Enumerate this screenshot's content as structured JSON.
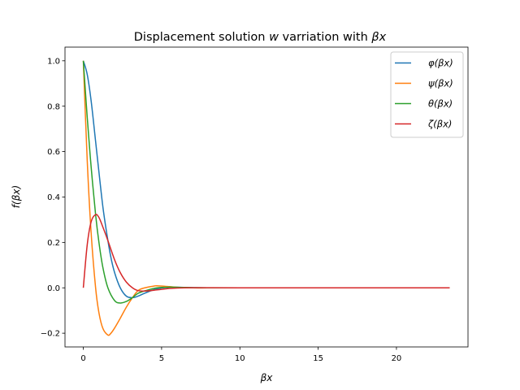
{
  "chart_data": {
    "type": "line",
    "title": {
      "prefix": "Displacement solution ",
      "symbol": "w",
      "middle": " varriation with ",
      "suffix": "βx"
    },
    "xlabel": "βx",
    "ylabel": "f(βx)",
    "xlim": [
      -1.17,
      24.57
    ],
    "ylim": [
      -0.2604,
      1.0602
    ],
    "xticks": [
      0,
      5,
      10,
      15,
      20
    ],
    "yticks": [
      -0.2,
      0.0,
      0.2,
      0.4,
      0.6,
      0.8,
      1.0
    ],
    "xtick_labels": [
      "0",
      "5",
      "10",
      "15",
      "20"
    ],
    "ytick_labels": [
      "−0.2",
      "0.0",
      "0.2",
      "0.4",
      "0.6",
      "0.8",
      "1.0"
    ],
    "grid": false,
    "legend_position": "upper right",
    "x_range": [
      0,
      23.4
    ],
    "series": [
      {
        "name": "φ(βx)",
        "color": "#1f77b4",
        "x": [
          0,
          0.25,
          0.5,
          0.785,
          1.0,
          1.25,
          1.5,
          1.75,
          2.0,
          2.36,
          2.75,
          3.14,
          3.5,
          3.93,
          4.5,
          5.0,
          5.5,
          6.0,
          7.0,
          8.0,
          10.0,
          15.0,
          20.0,
          23.4
        ],
        "y": [
          1.0,
          0.9398,
          0.8231,
          0.6448,
          0.5083,
          0.3563,
          0.2384,
          0.138,
          0.0667,
          0.0,
          -0.0368,
          -0.0432,
          -0.0366,
          -0.0234,
          -0.0086,
          -0.0006,
          0.0028,
          0.0025,
          0.0007,
          0.0,
          0.0,
          0.0,
          0.0,
          0.0
        ]
      },
      {
        "name": "ψ(βx)",
        "color": "#ff7f0e",
        "x": [
          0,
          0.25,
          0.5,
          0.785,
          1.0,
          1.25,
          1.57,
          1.75,
          2.0,
          2.36,
          2.75,
          3.14,
          3.5,
          3.93,
          4.5,
          4.71,
          5.5,
          6.0,
          7.0,
          8.0,
          10.0,
          15.0,
          20.0,
          23.4
        ],
        "y": [
          1.0,
          0.5607,
          0.2415,
          0.0,
          -0.1108,
          -0.1788,
          -0.2079,
          -0.2011,
          -0.177,
          -0.1341,
          -0.0849,
          -0.0432,
          -0.0119,
          0.0,
          0.0075,
          0.009,
          0.0052,
          0.0023,
          -0.0002,
          -0.0002,
          0.0,
          0.0,
          0.0,
          0.0
        ]
      },
      {
        "name": "θ(βx)",
        "color": "#2ca02c",
        "x": [
          0,
          0.25,
          0.5,
          0.785,
          1.0,
          1.25,
          1.57,
          2.0,
          2.36,
          2.75,
          3.14,
          3.5,
          4.0,
          4.71,
          5.5,
          6.0,
          7.0,
          8.0,
          10.0,
          15.0,
          20.0,
          23.4
        ],
        "y": [
          1.0,
          0.7503,
          0.5323,
          0.3224,
          0.1988,
          0.0893,
          0.0,
          -0.0563,
          -0.067,
          -0.0599,
          -0.0432,
          -0.0242,
          -0.012,
          0.0,
          0.0029,
          0.0024,
          0.0006,
          0.0,
          0.0,
          0.0,
          0.0,
          0.0
        ]
      },
      {
        "name": "ζ(βx)",
        "color": "#d62728",
        "x": [
          0,
          0.25,
          0.5,
          0.785,
          1.0,
          1.25,
          1.57,
          2.0,
          2.36,
          2.75,
          3.14,
          3.5,
          4.0,
          4.71,
          5.5,
          6.0,
          7.0,
          8.0,
          10.0,
          15.0,
          20.0,
          23.4
        ],
        "y": [
          0.0,
          0.1896,
          0.2908,
          0.3224,
          0.3096,
          0.2675,
          0.2079,
          0.1231,
          0.067,
          0.0249,
          0.0,
          -0.0123,
          -0.0139,
          -0.009,
          -0.0029,
          -0.0007,
          0.0006,
          0.0003,
          0.0,
          0.0,
          0.0,
          0.0
        ]
      }
    ]
  }
}
